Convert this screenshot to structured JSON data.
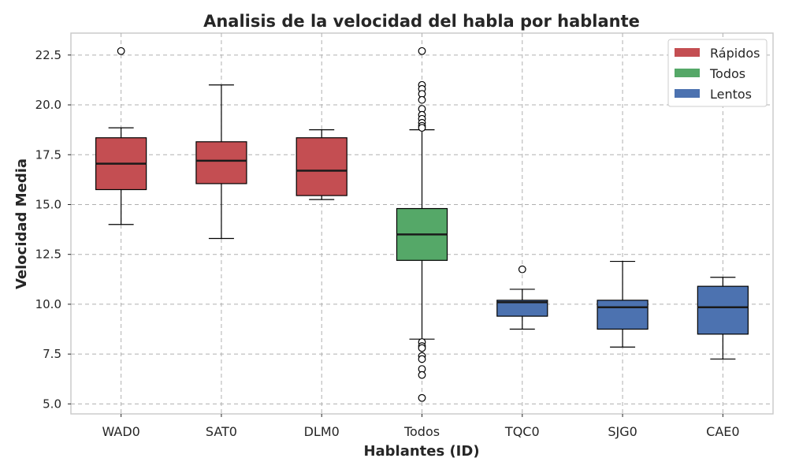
{
  "chart_data": {
    "type": "box",
    "title": "Analisis de la velocidad del habla por hablante",
    "xlabel": "Hablantes (ID)",
    "ylabel": "Velocidad Media",
    "ylim": [
      4.5,
      23.6
    ],
    "yticks": [
      5.0,
      7.5,
      10.0,
      12.5,
      15.0,
      17.5,
      20.0,
      22.5
    ],
    "ytick_labels": [
      "5.0",
      "7.5",
      "10.0",
      "12.5",
      "15.0",
      "17.5",
      "20.0",
      "22.5"
    ],
    "grid": true,
    "legend_position": "top-right",
    "legend": [
      {
        "label": "Rápidos",
        "color": "#c44e52"
      },
      {
        "label": "Todos",
        "color": "#55a868"
      },
      {
        "label": "Lentos",
        "color": "#4c72b0"
      }
    ],
    "categories": [
      "WAD0",
      "SAT0",
      "DLM0",
      "Todos",
      "TQC0",
      "SJG0",
      "CAE0"
    ],
    "boxes": [
      {
        "label": "WAD0",
        "group": "Rápidos",
        "whisker_low": 14.0,
        "q1": 15.75,
        "median": 17.05,
        "q3": 18.35,
        "whisker_high": 18.85,
        "outliers": [
          22.7
        ]
      },
      {
        "label": "SAT0",
        "group": "Rápidos",
        "whisker_low": 13.3,
        "q1": 16.05,
        "median": 17.2,
        "q3": 18.15,
        "whisker_high": 21.0,
        "outliers": []
      },
      {
        "label": "DLM0",
        "group": "Rápidos",
        "whisker_low": 15.25,
        "q1": 15.45,
        "median": 16.7,
        "q3": 18.35,
        "whisker_high": 18.75,
        "outliers": []
      },
      {
        "label": "Todos",
        "group": "Todos",
        "whisker_low": 8.25,
        "q1": 12.2,
        "median": 13.5,
        "q3": 14.8,
        "whisker_high": 18.75,
        "outliers": [
          22.7,
          21.0,
          20.8,
          20.55,
          20.25,
          19.8,
          19.5,
          19.3,
          19.1,
          18.95,
          18.85,
          8.1,
          7.9,
          7.8,
          7.4,
          7.25,
          6.75,
          6.45,
          5.3
        ]
      },
      {
        "label": "TQC0",
        "group": "Lentos",
        "whisker_low": 8.75,
        "q1": 9.4,
        "median": 10.1,
        "q3": 10.2,
        "whisker_high": 10.75,
        "outliers": [
          11.75
        ]
      },
      {
        "label": "SJG0",
        "group": "Lentos",
        "whisker_low": 7.85,
        "q1": 8.75,
        "median": 9.85,
        "q3": 10.2,
        "whisker_high": 12.15,
        "outliers": []
      },
      {
        "label": "CAE0",
        "group": "Lentos",
        "whisker_low": 7.25,
        "q1": 8.5,
        "median": 9.85,
        "q3": 10.9,
        "whisker_high": 11.35,
        "outliers": []
      }
    ],
    "colors": {
      "Rápidos": "#c44e52",
      "Todos": "#55a868",
      "Lentos": "#4c72b0",
      "grid": "#b0b0b0",
      "frame": "#cccccc",
      "median": "#1a1a1a"
    }
  }
}
